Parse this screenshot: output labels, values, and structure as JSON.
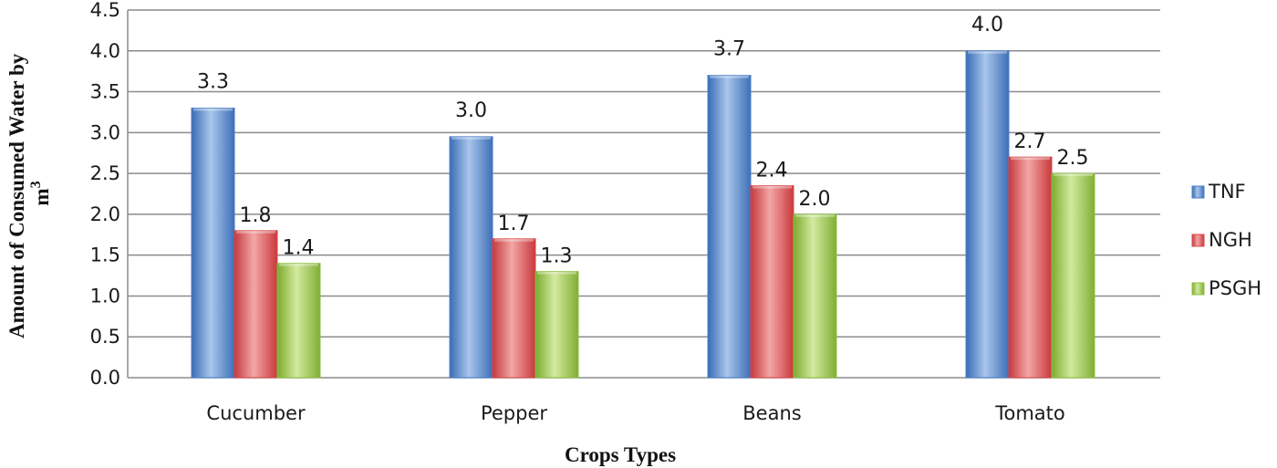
{
  "chart_data": {
    "type": "bar",
    "categories": [
      "Cucumber",
      "Pepper",
      "Beans",
      "Tomato"
    ],
    "series": [
      {
        "name": "TNF",
        "values": [
          3.3,
          2.95,
          3.7,
          4.0
        ],
        "labels": [
          "3.3",
          "3.0",
          "3.7",
          "4.0"
        ],
        "color": "#4a7ec9"
      },
      {
        "name": "NGH",
        "values": [
          1.8,
          1.7,
          2.35,
          2.7
        ],
        "labels": [
          "1.8",
          "1.7",
          "2.4",
          "2.7"
        ],
        "color": "#d9474a"
      },
      {
        "name": "PSGH",
        "values": [
          1.4,
          1.3,
          2.0,
          2.5
        ],
        "labels": [
          "1.4",
          "1.3",
          "2.0",
          "2.5"
        ],
        "color": "#8fbf3f"
      }
    ],
    "title": "",
    "xlabel": "Crops Types",
    "ylabel_line1": "Amount of Consumed Water by",
    "ylabel_line2": "m",
    "ylabel_superscript": "3",
    "ylim": [
      0,
      4.5
    ],
    "yticks": [
      "0.0",
      "0.5",
      "1.0",
      "1.5",
      "2.0",
      "2.5",
      "3.0",
      "3.5",
      "4.0",
      "4.5"
    ],
    "grid": true,
    "legend_position": "right"
  }
}
